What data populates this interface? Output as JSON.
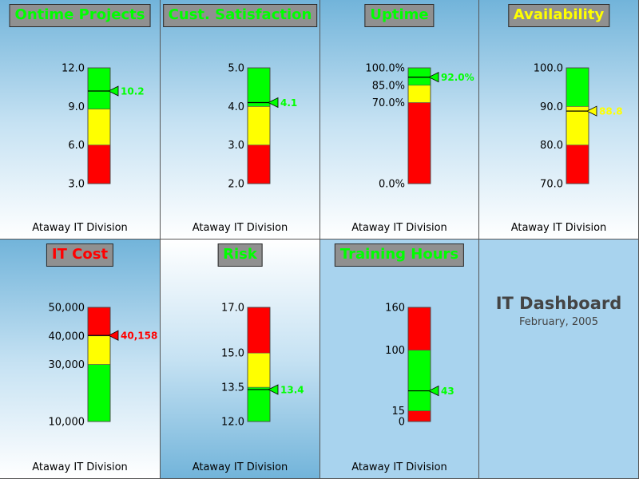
{
  "footer_text": "Ataway IT Division",
  "dashboard": {
    "title": "IT Dashboard",
    "subtitle": "February, 2005"
  },
  "colors": {
    "red": "#ff0000",
    "yellow": "#ffff00",
    "green": "#00ff00",
    "title_bg": "#909090"
  },
  "chart_data": [
    {
      "type": "bar",
      "title": "Ontime Projects",
      "title_color": "#00ff00",
      "ylim": [
        3.0,
        12.0
      ],
      "ticks": [
        "3.0",
        "6.0",
        "9.0",
        "12.0"
      ],
      "tick_values": [
        3.0,
        6.0,
        9.0,
        12.0
      ],
      "bands": [
        {
          "from": 3.0,
          "to": 6.0,
          "color": "red"
        },
        {
          "from": 6.0,
          "to": 8.8,
          "color": "yellow"
        },
        {
          "from": 8.8,
          "to": 12.0,
          "color": "green"
        }
      ],
      "value": 10.2,
      "value_label": "10.2",
      "value_color": "#00ff00",
      "legend": "none"
    },
    {
      "type": "bar",
      "title": "Cust. Satisfaction",
      "title_color": "#00ff00",
      "ylim": [
        2.0,
        5.0
      ],
      "ticks": [
        "2.0",
        "3.0",
        "4.0",
        "5.0"
      ],
      "tick_values": [
        2.0,
        3.0,
        4.0,
        5.0
      ],
      "bands": [
        {
          "from": 2.0,
          "to": 3.0,
          "color": "red"
        },
        {
          "from": 3.0,
          "to": 4.0,
          "color": "yellow"
        },
        {
          "from": 4.0,
          "to": 5.0,
          "color": "green"
        }
      ],
      "value": 4.1,
      "value_label": "4.1",
      "value_color": "#00ff00",
      "legend": "none"
    },
    {
      "type": "bar",
      "title": "Uptime",
      "title_color": "#00ff00",
      "ylim": [
        0,
        100
      ],
      "ticks": [
        "0.0%",
        "70.0%",
        "85.0%",
        "100.0%"
      ],
      "tick_values": [
        0,
        70,
        85,
        100
      ],
      "bands": [
        {
          "from": 0,
          "to": 70,
          "color": "red"
        },
        {
          "from": 70,
          "to": 85,
          "color": "yellow"
        },
        {
          "from": 85,
          "to": 100,
          "color": "green"
        }
      ],
      "value": 92.0,
      "value_label": "92.0%",
      "value_color": "#00ff00",
      "legend": "none"
    },
    {
      "type": "bar",
      "title": "Availability",
      "title_color": "#ffff00",
      "ylim": [
        70.0,
        100.0
      ],
      "ticks": [
        "70.0",
        "80.0",
        "90.0",
        "100.0"
      ],
      "tick_values": [
        70.0,
        80.0,
        90.0,
        100.0
      ],
      "bands": [
        {
          "from": 70.0,
          "to": 80.0,
          "color": "red"
        },
        {
          "from": 80.0,
          "to": 90.0,
          "color": "yellow"
        },
        {
          "from": 90.0,
          "to": 100.0,
          "color": "green"
        }
      ],
      "value": 88.8,
      "value_label": "88.8",
      "value_color": "#ffff00",
      "legend": "none"
    },
    {
      "type": "bar",
      "title": "IT Cost",
      "title_color": "#ff0000",
      "ylim": [
        10000,
        50000
      ],
      "ticks": [
        "10,000",
        "30,000",
        "40,000",
        "50,000"
      ],
      "tick_values": [
        10000,
        30000,
        40000,
        50000
      ],
      "bands": [
        {
          "from": 10000,
          "to": 30000,
          "color": "green"
        },
        {
          "from": 30000,
          "to": 40000,
          "color": "yellow"
        },
        {
          "from": 40000,
          "to": 50000,
          "color": "red"
        }
      ],
      "value": 40158,
      "value_label": "40,158",
      "value_color": "#ff0000",
      "legend": "none"
    },
    {
      "type": "bar",
      "title": "Risk",
      "title_color": "#00ff00",
      "ylim": [
        12.0,
        17.0
      ],
      "ticks": [
        "12.0",
        "13.5",
        "15.0",
        "17.0"
      ],
      "tick_values": [
        12.0,
        13.5,
        15.0,
        17.0
      ],
      "bands": [
        {
          "from": 12.0,
          "to": 13.5,
          "color": "green"
        },
        {
          "from": 13.5,
          "to": 15.0,
          "color": "yellow"
        },
        {
          "from": 15.0,
          "to": 17.0,
          "color": "red"
        }
      ],
      "value": 13.4,
      "value_label": "13.4",
      "value_color": "#00ff00",
      "legend": "none"
    },
    {
      "type": "bar",
      "title": "Training Hours",
      "title_color": "#00ff00",
      "ylim": [
        0,
        160
      ],
      "ticks": [
        "0",
        "15",
        "100",
        "160"
      ],
      "tick_values": [
        0,
        15,
        100,
        160
      ],
      "bands": [
        {
          "from": 0,
          "to": 15,
          "color": "red"
        },
        {
          "from": 15,
          "to": 100,
          "color": "green"
        },
        {
          "from": 100,
          "to": 160,
          "color": "red"
        }
      ],
      "value": 43,
      "value_label": "43",
      "value_color": "#00ff00",
      "legend": "none"
    }
  ]
}
